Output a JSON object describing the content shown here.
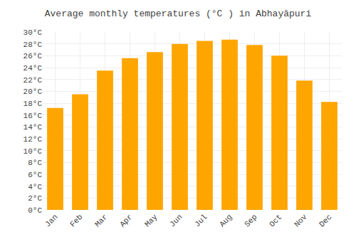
{
  "chart_data": {
    "type": "bar",
    "title": "Average monthly temperatures (°C ) in Abhayāpuri",
    "categories": [
      "Jan",
      "Feb",
      "Mar",
      "Apr",
      "May",
      "Jun",
      "Jul",
      "Aug",
      "Sep",
      "Oct",
      "Nov",
      "Dec"
    ],
    "values": [
      17.2,
      19.5,
      23.5,
      25.6,
      26.6,
      28.0,
      28.5,
      28.7,
      27.8,
      26.0,
      21.8,
      18.2
    ],
    "color": "#FFA500",
    "ylim": [
      0,
      30
    ],
    "yticks": [
      {
        "value": 0,
        "label": "0°C"
      },
      {
        "value": 2,
        "label": "2°C"
      },
      {
        "value": 4,
        "label": "4°C"
      },
      {
        "value": 6,
        "label": "6°C"
      },
      {
        "value": 8,
        "label": "8°C"
      },
      {
        "value": 10,
        "label": "10°C"
      },
      {
        "value": 12,
        "label": "12°C"
      },
      {
        "value": 14,
        "label": "14°C"
      },
      {
        "value": 16,
        "label": "16°C"
      },
      {
        "value": 18,
        "label": "18°C"
      },
      {
        "value": 20,
        "label": "20°C"
      },
      {
        "value": 22,
        "label": "22°C"
      },
      {
        "value": 24,
        "label": "24°C"
      },
      {
        "value": 26,
        "label": "26°C"
      },
      {
        "value": 28,
        "label": "28°C"
      },
      {
        "value": 30,
        "label": "30°C"
      }
    ],
    "grid": true
  }
}
